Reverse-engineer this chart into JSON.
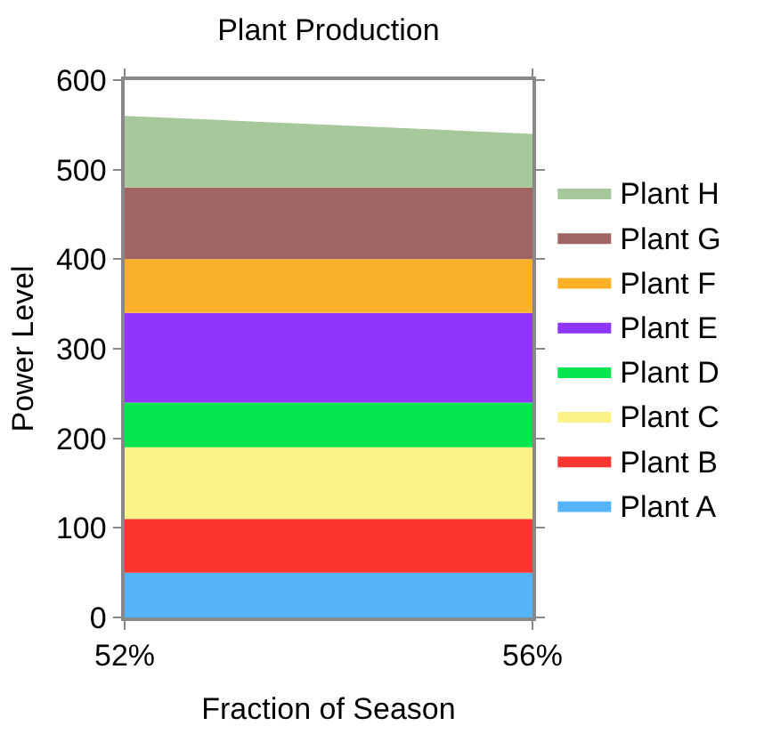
{
  "chart_data": {
    "type": "area",
    "stacked": true,
    "title": "Plant Production",
    "xlabel": "Fraction of Season",
    "ylabel": "Power Level",
    "x": [
      52,
      56
    ],
    "xlim": [
      52,
      56
    ],
    "xticks": [
      {
        "value": 52,
        "label": "52%"
      },
      {
        "value": 56,
        "label": "56%"
      }
    ],
    "ylim": [
      0,
      600
    ],
    "yticks": [
      0,
      100,
      200,
      300,
      400,
      500,
      600
    ],
    "legend": "right",
    "series": [
      {
        "name": "Plant A",
        "color": "#55b4f8",
        "values": [
          50,
          50
        ]
      },
      {
        "name": "Plant B",
        "color": "#fb3530",
        "values": [
          60,
          60
        ]
      },
      {
        "name": "Plant C",
        "color": "#fdf287",
        "values": [
          80,
          80
        ]
      },
      {
        "name": "Plant D",
        "color": "#06e54e",
        "values": [
          50,
          50
        ]
      },
      {
        "name": "Plant E",
        "color": "#9035fb",
        "values": [
          100,
          100
        ]
      },
      {
        "name": "Plant F",
        "color": "#fbb02a",
        "values": [
          60,
          60
        ]
      },
      {
        "name": "Plant G",
        "color": "#a06462",
        "values": [
          80,
          80
        ]
      },
      {
        "name": "Plant H",
        "color": "#a6c89a",
        "values": [
          80,
          60
        ]
      }
    ]
  }
}
